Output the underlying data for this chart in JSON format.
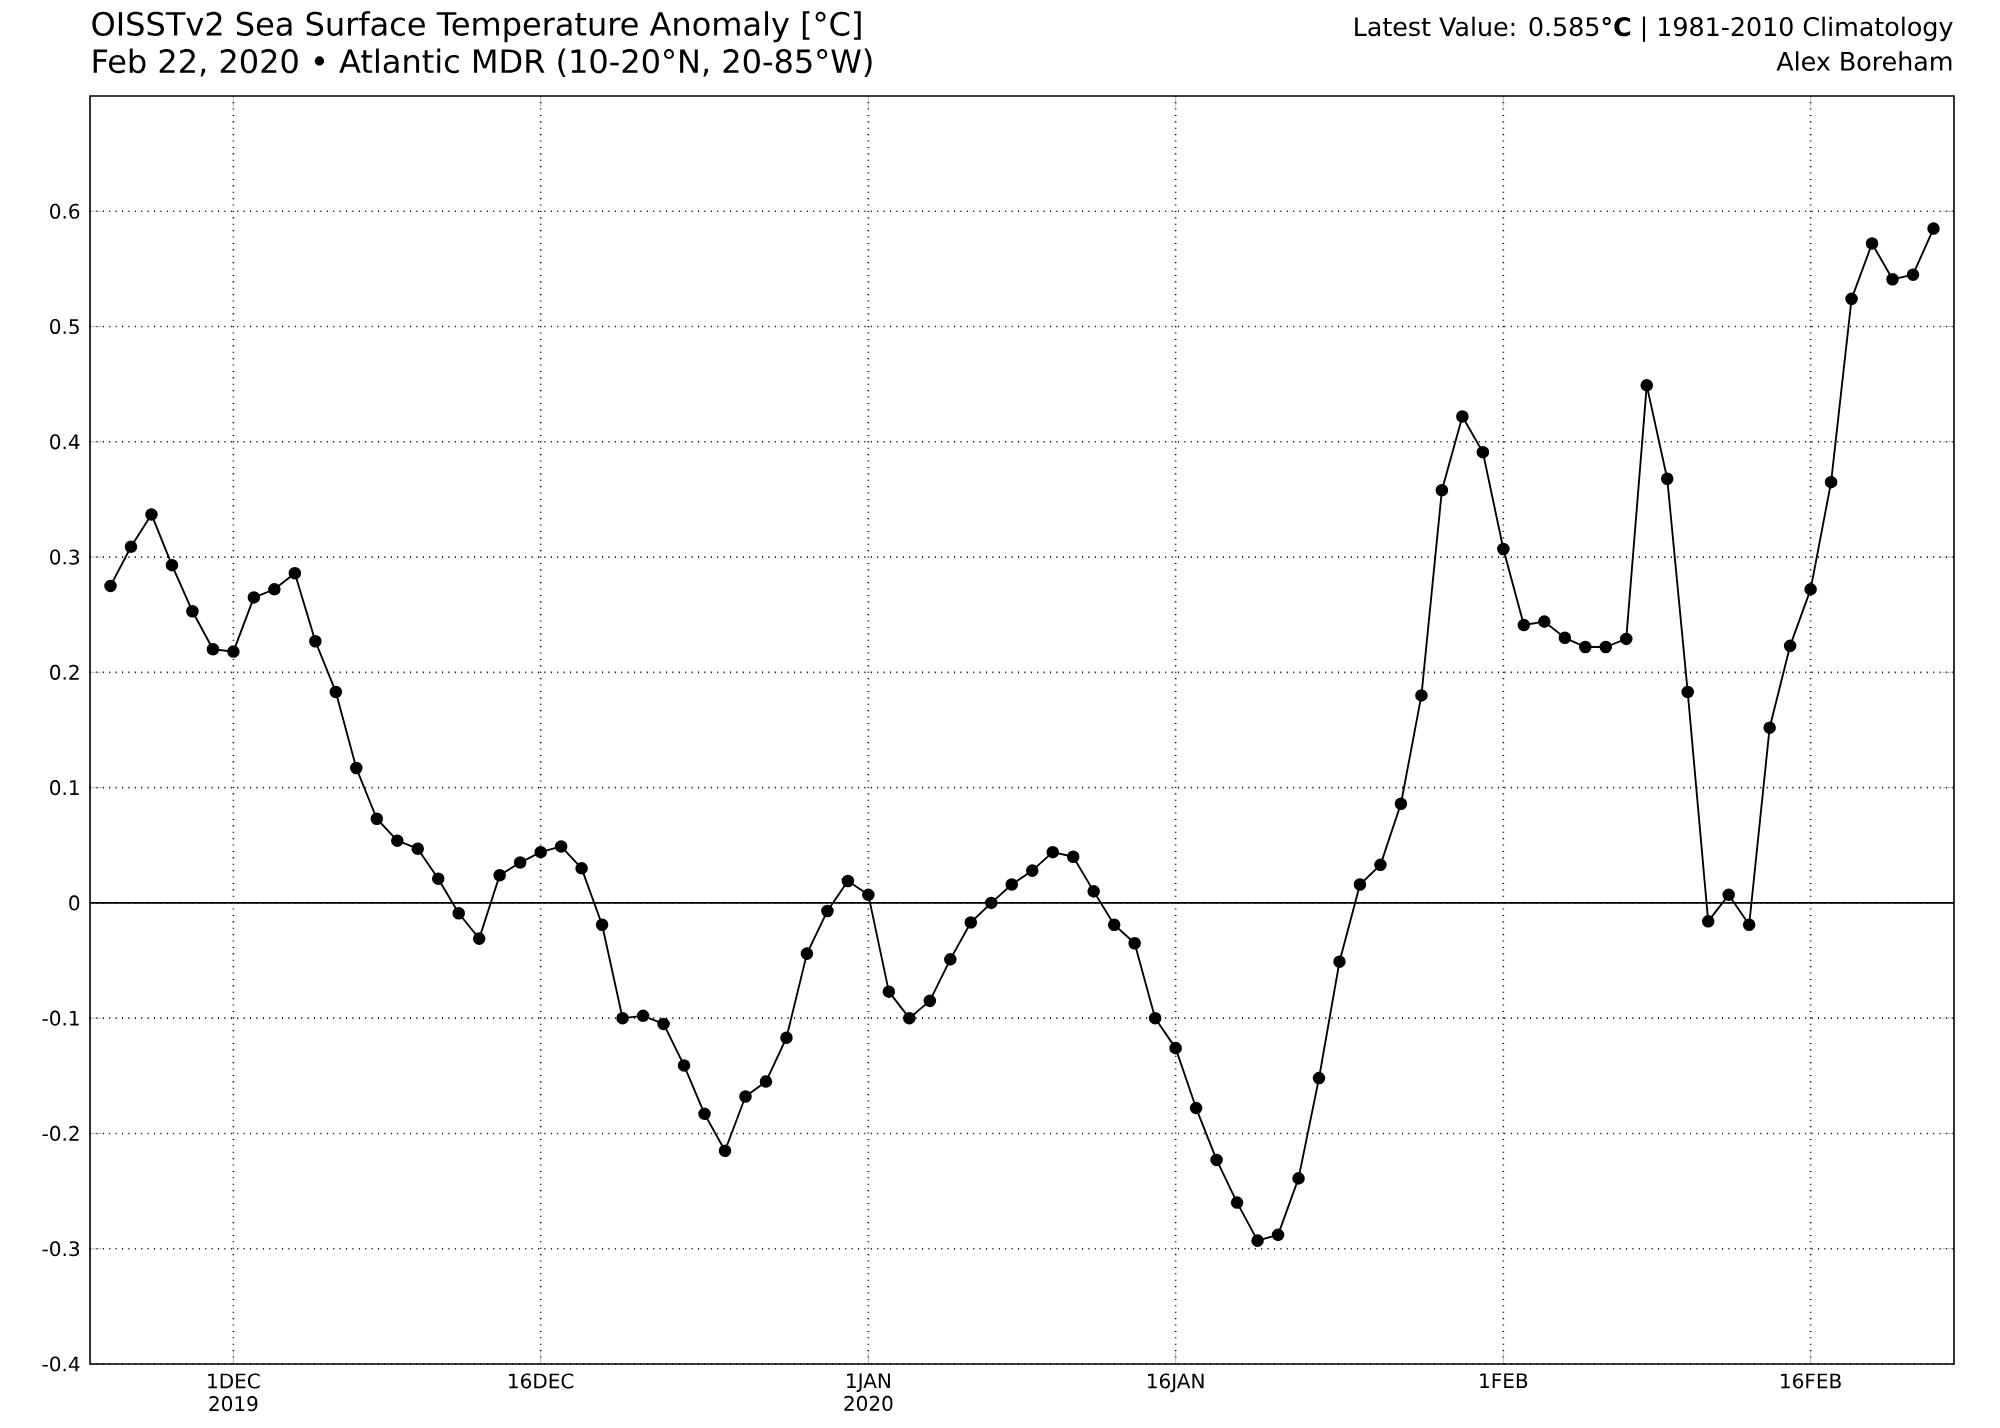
{
  "chart_data": {
    "type": "line",
    "title": "OISSTv2 Sea Surface Temperature Anomaly [°C]",
    "subtitle": "Feb 22, 2020 • Atlantic MDR (10-20°N, 20-85°W)",
    "annotations": [
      "Latest Value: 0.585**°C** | 1981-2010 Climatology",
      "Alex Boreham"
    ],
    "x": [
      "2019-11-25",
      "2019-11-26",
      "2019-11-27",
      "2019-11-28",
      "2019-11-29",
      "2019-11-30",
      "2019-12-01",
      "2019-12-02",
      "2019-12-03",
      "2019-12-04",
      "2019-12-05",
      "2019-12-06",
      "2019-12-07",
      "2019-12-08",
      "2019-12-09",
      "2019-12-10",
      "2019-12-11",
      "2019-12-12",
      "2019-12-13",
      "2019-12-14",
      "2019-12-15",
      "2019-12-16",
      "2019-12-17",
      "2019-12-18",
      "2019-12-19",
      "2019-12-20",
      "2019-12-21",
      "2019-12-22",
      "2019-12-23",
      "2019-12-24",
      "2019-12-25",
      "2019-12-26",
      "2019-12-27",
      "2019-12-28",
      "2019-12-29",
      "2019-12-30",
      "2019-12-31",
      "2020-01-01",
      "2020-01-02",
      "2020-01-03",
      "2020-01-04",
      "2020-01-05",
      "2020-01-06",
      "2020-01-07",
      "2020-01-08",
      "2020-01-09",
      "2020-01-10",
      "2020-01-11",
      "2020-01-12",
      "2020-01-13",
      "2020-01-14",
      "2020-01-15",
      "2020-01-16",
      "2020-01-17",
      "2020-01-18",
      "2020-01-19",
      "2020-01-20",
      "2020-01-21",
      "2020-01-22",
      "2020-01-23",
      "2020-01-24",
      "2020-01-25",
      "2020-01-26",
      "2020-01-27",
      "2020-01-28",
      "2020-01-29",
      "2020-01-30",
      "2020-01-31",
      "2020-02-01",
      "2020-02-02",
      "2020-02-03",
      "2020-02-04",
      "2020-02-05",
      "2020-02-06",
      "2020-02-07",
      "2020-02-08",
      "2020-02-09",
      "2020-02-10",
      "2020-02-11",
      "2020-02-12",
      "2020-02-13",
      "2020-02-14",
      "2020-02-15",
      "2020-02-16",
      "2020-02-17",
      "2020-02-18",
      "2020-02-19",
      "2020-02-20",
      "2020-02-21",
      "2020-02-22"
    ],
    "series": [
      {
        "color": "#000000",
        "values": [
          0.275,
          0.309,
          0.337,
          0.293,
          0.253,
          0.22,
          0.218,
          0.265,
          0.272,
          0.286,
          0.227,
          0.183,
          0.117,
          0.073,
          0.054,
          0.047,
          0.021,
          -0.009,
          -0.031,
          0.024,
          0.035,
          0.044,
          0.049,
          0.03,
          -0.019,
          -0.1,
          -0.098,
          -0.105,
          -0.141,
          -0.183,
          -0.215,
          -0.168,
          -0.155,
          -0.117,
          -0.044,
          -0.007,
          0.019,
          0.007,
          -0.077,
          -0.1,
          -0.085,
          -0.049,
          -0.017,
          0.0,
          0.016,
          0.028,
          0.044,
          0.04,
          0.01,
          -0.019,
          -0.035,
          -0.1,
          -0.126,
          -0.178,
          -0.223,
          -0.26,
          -0.293,
          -0.288,
          -0.239,
          -0.152,
          -0.051,
          0.016,
          0.033,
          0.086,
          0.18,
          0.358,
          0.422,
          0.391,
          0.307,
          0.241,
          0.244,
          0.23,
          0.222,
          0.222,
          0.229,
          0.449,
          0.368,
          0.183,
          -0.016,
          0.007,
          -0.019,
          0.152,
          0.223,
          0.272,
          0.365,
          0.524,
          0.572,
          0.541,
          0.545,
          0.585
        ]
      }
    ],
    "xlim": [
      "2019-11-24",
      "2020-02-23"
    ],
    "xticks": [
      {
        "value": "2019-12-01",
        "label": "1DEC 2019"
      },
      {
        "value": "2019-12-16",
        "label": "16DEC"
      },
      {
        "value": "2020-01-01",
        "label": "1JAN 2020"
      },
      {
        "value": "2020-01-16",
        "label": "16JAN"
      },
      {
        "value": "2020-02-01",
        "label": "1FEB"
      },
      {
        "value": "2020-02-16",
        "label": "16FEB"
      }
    ],
    "ylim": [
      -0.4,
      0.7
    ],
    "yticks": [
      -0.4,
      -0.3,
      -0.2,
      -0.1,
      0,
      0.1,
      0.2,
      0.3,
      0.4,
      0.5,
      0.6
    ],
    "ref_lines": [
      {
        "axis": "y",
        "value": 0,
        "color": "#000000",
        "line_style": "solid"
      }
    ],
    "grid": true,
    "marker": "circle",
    "line_style": "solid"
  }
}
